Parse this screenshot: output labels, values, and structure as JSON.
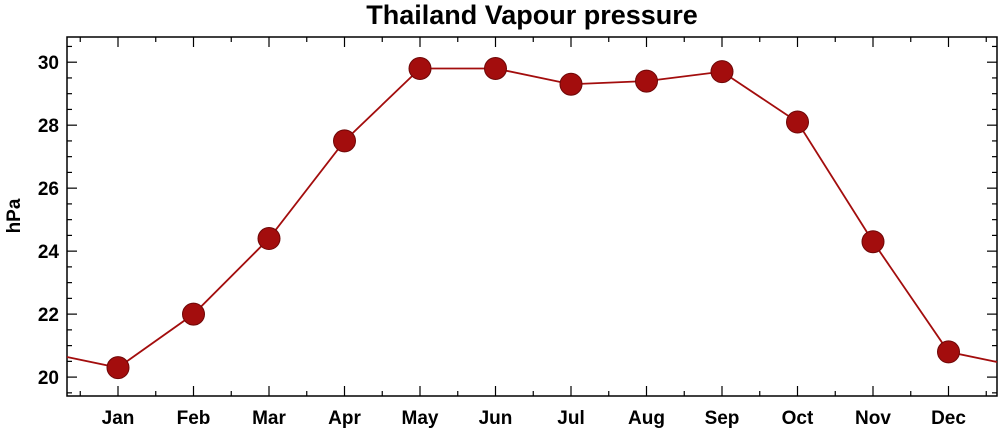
{
  "chart_data": {
    "type": "line",
    "title": "Thailand Vapour pressure",
    "xlabel": "",
    "ylabel": "hPa",
    "categories": [
      "Jan",
      "Feb",
      "Mar",
      "Apr",
      "May",
      "Jun",
      "Jul",
      "Aug",
      "Sep",
      "Oct",
      "Nov",
      "Dec"
    ],
    "values": [
      20.3,
      22.0,
      24.4,
      27.5,
      29.8,
      29.8,
      29.3,
      29.4,
      29.7,
      28.1,
      24.3,
      20.8
    ],
    "ylim": [
      19.4,
      30.8
    ],
    "yticks": [
      20,
      22,
      24,
      26,
      28,
      30
    ],
    "ytick_labels": [
      "20",
      "22",
      "24",
      "26",
      "28",
      "30"
    ],
    "grid": false,
    "legend": "none",
    "colors": {
      "series": "#a30d0d",
      "axis": "#000000"
    }
  }
}
